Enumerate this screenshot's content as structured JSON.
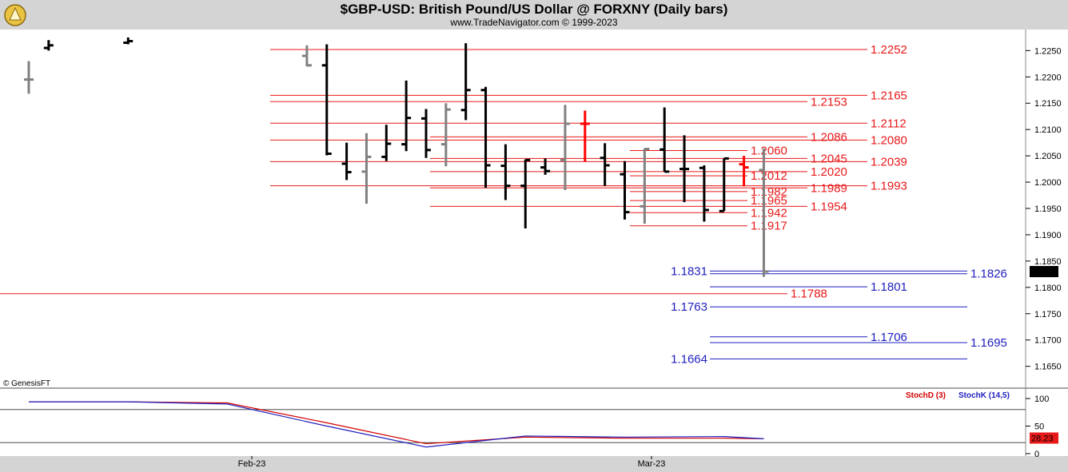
{
  "header": {
    "title": "$GBP-USD:  British Pound/US Dollar @ FORXNY  (Daily bars)",
    "subtitle": "www.TradeNavigator.com © 1999-2023"
  },
  "copyright": "© GenesisFT",
  "colors": {
    "up": "#000000",
    "down": "#808080",
    "highlight": "#ff0000",
    "resistance": "#e8191a",
    "support": "#1f1fbf",
    "stochD": "#d40000",
    "stochK": "#1f1fbf"
  },
  "chart_data": [
    {
      "type": "candlestick",
      "title": "$GBP-USD:  British Pound/US Dollar @ FORXNY  (Daily bars)",
      "ylim": [
        1.161,
        1.229
      ],
      "y_ticks": [
        "1.2250",
        "1.2200",
        "1.2150",
        "1.2100",
        "1.2050",
        "1.2000",
        "1.1950",
        "1.1900",
        "1.1850",
        "1.1800",
        "1.1750",
        "1.1700",
        "1.1650"
      ],
      "x_ticks": [
        "Feb-23",
        "Mar-23"
      ],
      "last_price": "1.1830",
      "bars": [
        {
          "i": 0,
          "o": 1.2195,
          "h": 1.223,
          "l": 1.2168,
          "c": 1.2195,
          "color": "gray"
        },
        {
          "i": 1,
          "o": 1.2255,
          "h": 1.227,
          "l": 1.225,
          "c": 1.226,
          "color": "black"
        },
        {
          "i": 5,
          "o": 1.2265,
          "h": 1.2275,
          "l": 1.2262,
          "c": 1.2268,
          "color": "black"
        },
        {
          "i": 14,
          "o": 1.224,
          "h": 1.226,
          "l": 1.222,
          "c": 1.2222,
          "color": "gray"
        },
        {
          "i": 15,
          "o": 1.2222,
          "h": 1.2262,
          "l": 1.2051,
          "c": 1.2054,
          "color": "black"
        },
        {
          "i": 16,
          "o": 1.2035,
          "h": 1.2075,
          "l": 1.2004,
          "c": 1.2019,
          "color": "black"
        },
        {
          "i": 17,
          "o": 1.202,
          "h": 1.2093,
          "l": 1.1959,
          "c": 1.2048,
          "color": "gray"
        },
        {
          "i": 18,
          "o": 1.2048,
          "h": 1.2109,
          "l": 1.204,
          "c": 1.2073,
          "color": "black"
        },
        {
          "i": 19,
          "o": 1.2072,
          "h": 1.2193,
          "l": 1.2059,
          "c": 1.2122,
          "color": "black"
        },
        {
          "i": 20,
          "o": 1.2121,
          "h": 1.2139,
          "l": 1.2046,
          "c": 1.2061,
          "color": "black"
        },
        {
          "i": 21,
          "o": 1.2072,
          "h": 1.215,
          "l": 1.203,
          "c": 1.2138,
          "color": "gray"
        },
        {
          "i": 22,
          "o": 1.2137,
          "h": 1.2264,
          "l": 1.2118,
          "c": 1.2175,
          "color": "black"
        },
        {
          "i": 23,
          "o": 1.2175,
          "h": 1.2181,
          "l": 1.1989,
          "c": 1.2032,
          "color": "black"
        },
        {
          "i": 24,
          "o": 1.2031,
          "h": 1.2072,
          "l": 1.1966,
          "c": 1.1993,
          "color": "black"
        },
        {
          "i": 25,
          "o": 1.1993,
          "h": 1.2043,
          "l": 1.1912,
          "c": 1.2042,
          "color": "black"
        },
        {
          "i": 26,
          "o": 1.2028,
          "h": 1.2045,
          "l": 1.2014,
          "c": 1.2021,
          "color": "black"
        },
        {
          "i": 27,
          "o": 1.2042,
          "h": 1.2147,
          "l": 1.1985,
          "c": 1.2111,
          "color": "gray"
        },
        {
          "i": 28,
          "o": 1.2111,
          "h": 1.2136,
          "l": 1.2039,
          "c": 1.2111,
          "color": "red"
        },
        {
          "i": 29,
          "o": 1.2046,
          "h": 1.2074,
          "l": 1.1993,
          "c": 1.2032,
          "color": "black"
        },
        {
          "i": 30,
          "o": 1.2015,
          "h": 1.204,
          "l": 1.1929,
          "c": 1.1943,
          "color": "black"
        },
        {
          "i": 31,
          "o": 1.1954,
          "h": 1.2064,
          "l": 1.1921,
          "c": 1.2063,
          "color": "gray"
        },
        {
          "i": 32,
          "o": 1.2062,
          "h": 1.2142,
          "l": 1.202,
          "c": 1.202,
          "color": "black"
        },
        {
          "i": 33,
          "o": 1.2025,
          "h": 1.2089,
          "l": 1.1962,
          "c": 1.2025,
          "color": "black"
        },
        {
          "i": 34,
          "o": 1.2027,
          "h": 1.2032,
          "l": 1.1925,
          "c": 1.1947,
          "color": "black"
        },
        {
          "i": 35,
          "o": 1.1945,
          "h": 1.2045,
          "l": 1.1945,
          "c": 1.2045,
          "color": "black"
        },
        {
          "i": 36,
          "o": 1.2034,
          "h": 1.205,
          "l": 1.1992,
          "c": 1.2028,
          "color": "red"
        },
        {
          "i": 37,
          "o": 1.2023,
          "h": 1.2064,
          "l": 1.182,
          "c": 1.183,
          "color": "gray"
        }
      ],
      "levels": [
        {
          "value": 1.2252,
          "label": "1.2252",
          "color": "red",
          "side": "right"
        },
        {
          "value": 1.2165,
          "label": "1.2165",
          "color": "red",
          "side": "right"
        },
        {
          "value": 1.2153,
          "label": "1.2153",
          "color": "red",
          "side": "right"
        },
        {
          "value": 1.2112,
          "label": "1.2112",
          "color": "red",
          "side": "right"
        },
        {
          "value": 1.2086,
          "label": "1.2086",
          "color": "red",
          "side": "right"
        },
        {
          "value": 1.208,
          "label": "1.2080",
          "color": "red",
          "side": "right"
        },
        {
          "value": 1.206,
          "label": "1.2060",
          "color": "red",
          "side": "right"
        },
        {
          "value": 1.2045,
          "label": "1.2045",
          "color": "red",
          "side": "right"
        },
        {
          "value": 1.2039,
          "label": "1.2039",
          "color": "red",
          "side": "right"
        },
        {
          "value": 1.202,
          "label": "1.2020",
          "color": "red",
          "side": "right"
        },
        {
          "value": 1.2012,
          "label": "1.2012",
          "color": "red",
          "side": "right"
        },
        {
          "value": 1.1993,
          "label": "1.1993",
          "color": "red",
          "side": "right"
        },
        {
          "value": 1.1989,
          "label": "1.1989",
          "color": "red",
          "side": "right"
        },
        {
          "value": 1.1982,
          "label": "1.1982",
          "color": "red",
          "side": "right"
        },
        {
          "value": 1.1965,
          "label": "1.1965",
          "color": "red",
          "side": "right"
        },
        {
          "value": 1.1954,
          "label": "1.1954",
          "color": "red",
          "side": "right"
        },
        {
          "value": 1.1942,
          "label": "1.1942",
          "color": "red",
          "side": "right"
        },
        {
          "value": 1.1917,
          "label": "1.1917",
          "color": "red",
          "side": "right"
        },
        {
          "value": 1.1831,
          "label": "1.1831",
          "color": "blue",
          "side": "left"
        },
        {
          "value": 1.1826,
          "label": "1.1826",
          "color": "blue",
          "side": "right"
        },
        {
          "value": 1.1801,
          "label": "1.1801",
          "color": "blue",
          "side": "right"
        },
        {
          "value": 1.1788,
          "label": "1.1788",
          "color": "red",
          "side": "right"
        },
        {
          "value": 1.1763,
          "label": "1.1763",
          "color": "blue",
          "side": "left"
        },
        {
          "value": 1.1706,
          "label": "1.1706",
          "color": "blue",
          "side": "right"
        },
        {
          "value": 1.1695,
          "label": "1.1695",
          "color": "blue",
          "side": "right"
        },
        {
          "value": 1.1664,
          "label": "1.1664",
          "color": "blue",
          "side": "left"
        }
      ]
    },
    {
      "type": "line",
      "title": "",
      "ylim": [
        0,
        100
      ],
      "y_ticks": [
        "100",
        "50",
        "0"
      ],
      "last_value": "28.23",
      "series": [
        {
          "name": "StochD (3)",
          "x": [
            0,
            5,
            10,
            15,
            20,
            25,
            30,
            35,
            37
          ],
          "values": [
            94,
            94,
            92,
            56,
            18,
            30,
            28,
            28,
            27
          ]
        },
        {
          "name": "StochK (14,5)",
          "x": [
            0,
            5,
            10,
            15,
            20,
            25,
            30,
            35,
            37
          ],
          "values": [
            94,
            94,
            90,
            50,
            12,
            32,
            30,
            31,
            27
          ]
        }
      ]
    }
  ]
}
